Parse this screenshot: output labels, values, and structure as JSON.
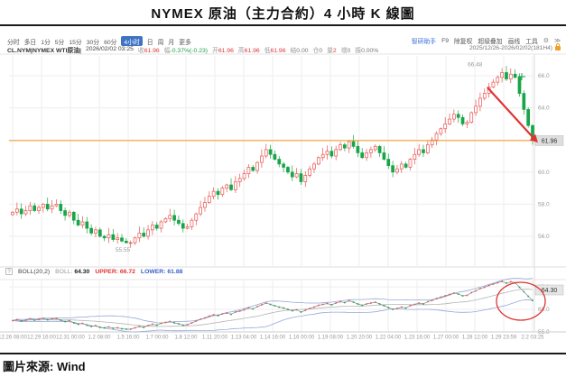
{
  "page": {
    "title": "NYMEX 原油（主力合約）4 小時 K 線圖",
    "source_label": "圖片來源: Wind"
  },
  "toolbar": {
    "periods": [
      "分时",
      "多日",
      "1分",
      "5分",
      "15分",
      "30分",
      "60分",
      "4小时",
      "日",
      "周",
      "月",
      "更多"
    ],
    "active_period": "4小时",
    "right_items": [
      "智研助手",
      "F9",
      "除复权",
      "超级叠加",
      "画线",
      "工具"
    ],
    "gear_icon": "⚙",
    "more_icon": "≫",
    "date_range": "2025/12/26-2026/02/02(181H4)"
  },
  "quote_bar": {
    "symbol": "CL.NYM|NYMEX WTI原油|",
    "datetime": "2026/02/02 03:25",
    "fields": [
      {
        "label": "收",
        "value": "61.96",
        "color": "#e03434"
      },
      {
        "label": "幅",
        "value": "-0.37%(-0.23)",
        "color": "#1ca049"
      },
      {
        "label": "开",
        "value": "61.96",
        "color": "#e03434"
      },
      {
        "label": "高",
        "value": "61.96",
        "color": "#e03434"
      },
      {
        "label": "低",
        "value": "61.96",
        "color": "#e03434"
      },
      {
        "label": "结",
        "value": "0.00",
        "color": "#777777"
      },
      {
        "label": "仓",
        "value": "0",
        "color": "#777777"
      },
      {
        "label": "量",
        "value": "2",
        "color": "#e03434"
      },
      {
        "label": "增",
        "value": "0",
        "color": "#777777"
      },
      {
        "label": "振",
        "value": "0.00%",
        "color": "#777777"
      }
    ]
  },
  "indicator": {
    "icon": "?",
    "name": "BOLL(20,2)",
    "boll_label": "BOLL:",
    "boll_value": "64.30",
    "upper_label": "UPPER:",
    "upper_value": "66.72",
    "lower_label": "LOWER:",
    "lower_value": "61.88"
  },
  "chart_data": {
    "type": "candlestick",
    "title": "NYMEX 原油（主力合約）4 小時 K 線圖",
    "period": "4小时",
    "x_labels": [
      "12.26 08:00",
      "12.29 16:00",
      "12.31 00:00",
      "1.2 08:00",
      "1.5 16:00",
      "1.7 00:00",
      "1.8 12:00",
      "1.11 20:00",
      "1.13 04:00",
      "1.14 16:00",
      "1.16 00:00",
      "1.19 08:00",
      "1.20 20:00",
      "1.22 04:00",
      "1.23 16:00",
      "1.27 00:00",
      "1.28 12:00",
      "1.29 23:59",
      "2.2 03:25"
    ],
    "y_gridlines_main": [
      66,
      64,
      62,
      60,
      58,
      56
    ],
    "y_tick_labels_main": [
      "66.0",
      "64.0",
      "60.0",
      "58.0",
      "56.0"
    ],
    "y_tick_prices_main": [
      66,
      64,
      60,
      58,
      56
    ],
    "y_ticks_sub": [
      {
        "label": "65.0",
        "price": 65
      },
      {
        "label": "60.0",
        "price": 60
      },
      {
        "label": "55.0",
        "price": 55
      }
    ],
    "ylim_main": [
      54.4,
      67.3
    ],
    "ylim_sub": [
      55,
      67.6
    ],
    "closes": [
      57.5,
      57.7,
      57.4,
      57.6,
      57.9,
      57.6,
      57.8,
      58.0,
      57.7,
      57.9,
      58.0,
      57.6,
      57.3,
      57.5,
      57.0,
      56.7,
      56.9,
      56.5,
      56.2,
      56.4,
      56.0,
      55.9,
      56.1,
      55.8,
      55.9,
      55.7,
      55.6,
      55.6,
      55.9,
      56.2,
      56.0,
      56.4,
      56.7,
      56.5,
      56.9,
      57.1,
      57.3,
      57.0,
      56.8,
      56.5,
      56.6,
      57.0,
      57.4,
      57.8,
      58.1,
      58.5,
      58.8,
      58.6,
      59.0,
      59.2,
      58.9,
      59.4,
      59.6,
      59.9,
      60.3,
      60.1,
      60.6,
      61.0,
      61.4,
      61.1,
      60.8,
      60.5,
      60.3,
      60.0,
      59.7,
      59.9,
      59.4,
      59.8,
      60.2,
      60.5,
      60.9,
      61.1,
      61.3,
      61.0,
      61.4,
      61.7,
      61.5,
      61.9,
      61.6,
      61.2,
      60.9,
      61.2,
      61.4,
      61.6,
      61.2,
      60.8,
      60.4,
      60.0,
      60.2,
      60.5,
      60.3,
      60.8,
      61.1,
      61.4,
      61.2,
      61.7,
      62.0,
      62.4,
      62.7,
      63.0,
      63.3,
      63.6,
      63.4,
      63.0,
      63.1,
      63.7,
      64.1,
      64.6,
      64.9,
      65.3,
      65.6,
      65.9,
      66.2,
      65.8,
      66.1,
      65.9,
      64.9,
      63.9,
      62.9,
      61.96
    ],
    "high_annotation": "66.48",
    "low_annotation": "55.55",
    "last_price": "61.96",
    "boll": {
      "period": 20,
      "mult": 2,
      "mid_value": "64.30",
      "upper_value": "66.72",
      "lower_value": "61.88"
    },
    "legend_position": "top-left",
    "grid": true,
    "colors": {
      "up": "#e8544f",
      "down": "#18a548",
      "last_price_line": "#f59a23",
      "band": "#93a9de",
      "mid": "#b5b5b5",
      "annotation": "#e03434",
      "grid": "#ededed",
      "axis_text": "#999999"
    }
  }
}
